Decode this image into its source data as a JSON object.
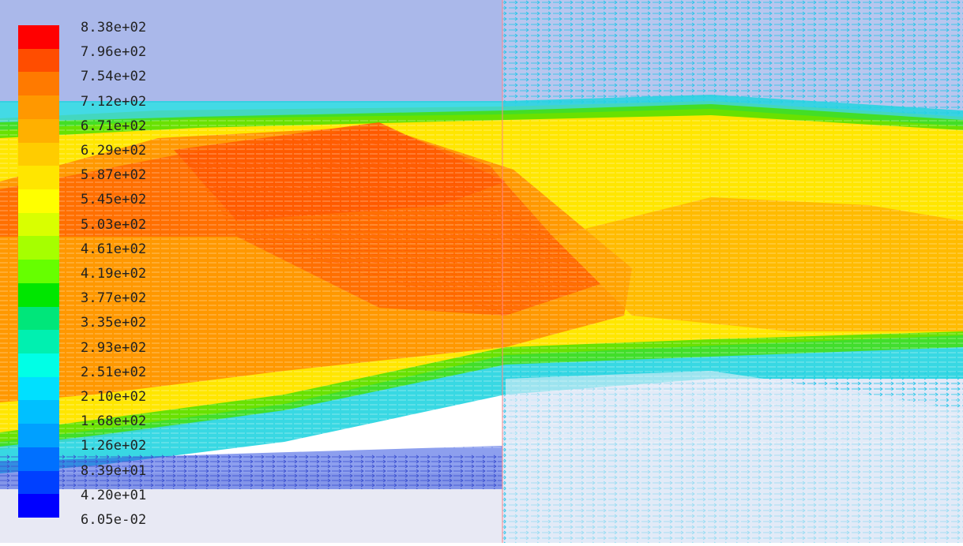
{
  "legend": {
    "labels": [
      "8.38e+02",
      "7.96e+02",
      "7.54e+02",
      "7.12e+02",
      "6.71e+02",
      "6.29e+02",
      "5.87e+02",
      "5.45e+02",
      "5.03e+02",
      "4.61e+02",
      "4.19e+02",
      "3.77e+02",
      "3.35e+02",
      "2.93e+02",
      "2.51e+02",
      "2.10e+02",
      "1.68e+02",
      "1.26e+02",
      "8.39e+01",
      "4.20e+01",
      "6.05e-02"
    ],
    "colors": [
      "#ff0000",
      "#ff4d00",
      "#ff7a00",
      "#ff9800",
      "#ffb000",
      "#ffcc00",
      "#ffe600",
      "#ffff00",
      "#d9ff00",
      "#a6ff00",
      "#66ff00",
      "#00e600",
      "#00e67a",
      "#00f0b0",
      "#00ffe6",
      "#00e0ff",
      "#00c0ff",
      "#00a0ff",
      "#0070ff",
      "#0040ff",
      "#0000ff"
    ]
  },
  "colors": {
    "background_upper": "#aab8ea",
    "background_lower": "#e8e9f4",
    "core_hot": "#ff6a00",
    "core_warm": "#ff9800",
    "outer_flow": "#ffe600",
    "shear_layer": "#00e0ff",
    "wall_line": "#ff8888"
  }
}
